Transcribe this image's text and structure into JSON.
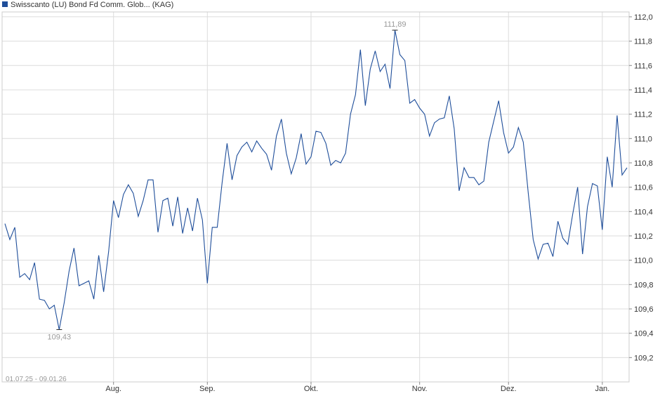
{
  "chart_data": {
    "type": "line",
    "title": "Swisscanto (LU) Bond Fd Comm. Glob... (KAG)",
    "date_range_label": "01.07.25 - 09.01.26",
    "x_tick_labels": [
      "Aug.",
      "Sep.",
      "Okt.",
      "Nov.",
      "Dez.",
      "Jan."
    ],
    "x_tick_index": [
      22,
      41,
      62,
      84,
      102,
      121
    ],
    "y_tick_labels": [
      "109,2",
      "109,4",
      "109,6",
      "109,8",
      "110,0",
      "110,2",
      "110,4",
      "110,6",
      "110,8",
      "111,0",
      "111,2",
      "111,4",
      "111,6",
      "111,8",
      "112,0"
    ],
    "ylim": [
      109.0,
      112.04
    ],
    "grid": true,
    "legend_position": "top-left",
    "colors": {
      "line": "#1f4e9a",
      "legend_marker": "#1f4e9a",
      "grid": "#dcdcdc",
      "text": "#333333",
      "annotation": "#999999"
    },
    "annotations": [
      {
        "label": "111,89",
        "index": 79,
        "value": 111.89,
        "position": "above"
      },
      {
        "label": "109,43",
        "index": 11,
        "value": 109.43,
        "position": "below"
      }
    ],
    "series": [
      {
        "name": "Swisscanto (LU) Bond Fd Comm. Glob... (KAG)",
        "values": [
          110.3,
          110.17,
          110.27,
          109.86,
          109.89,
          109.84,
          109.98,
          109.68,
          109.67,
          109.6,
          109.63,
          109.43,
          109.65,
          109.91,
          110.1,
          109.79,
          109.81,
          109.83,
          109.68,
          110.04,
          109.74,
          110.07,
          110.49,
          110.35,
          110.54,
          110.62,
          110.55,
          110.36,
          110.49,
          110.66,
          110.66,
          110.23,
          110.49,
          110.51,
          110.28,
          110.52,
          110.22,
          110.43,
          110.24,
          110.51,
          110.33,
          109.81,
          110.27,
          110.27,
          110.64,
          110.96,
          110.66,
          110.86,
          110.93,
          110.97,
          110.89,
          110.98,
          110.92,
          110.87,
          110.74,
          111.02,
          111.16,
          110.88,
          110.71,
          110.84,
          111.04,
          110.79,
          110.85,
          111.06,
          111.05,
          110.96,
          110.78,
          110.82,
          110.8,
          110.88,
          111.2,
          111.36,
          111.73,
          111.27,
          111.57,
          111.72,
          111.55,
          111.61,
          111.41,
          111.89,
          111.69,
          111.64,
          111.29,
          111.32,
          111.25,
          111.2,
          111.02,
          111.13,
          111.16,
          111.17,
          111.35,
          111.08,
          110.57,
          110.76,
          110.68,
          110.68,
          110.62,
          110.65,
          110.97,
          111.14,
          111.31,
          111.05,
          110.88,
          110.93,
          111.09,
          110.97,
          110.55,
          110.17,
          110.01,
          110.13,
          110.14,
          110.03,
          110.32,
          110.18,
          110.13,
          110.38,
          110.6,
          110.05,
          110.44,
          110.63,
          110.61,
          110.25,
          110.85,
          110.6,
          111.19,
          110.7,
          110.76
        ]
      }
    ]
  }
}
